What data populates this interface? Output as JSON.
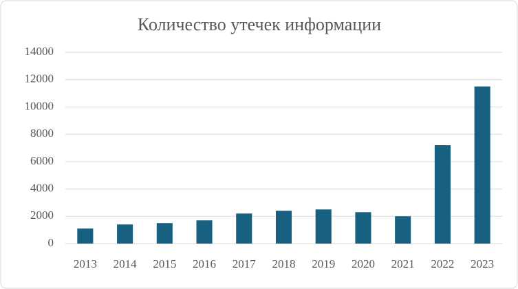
{
  "chart_data": {
    "type": "bar",
    "title": "Количество утечек информации",
    "categories": [
      "2013",
      "2014",
      "2015",
      "2016",
      "2017",
      "2018",
      "2019",
      "2020",
      "2021",
      "2022",
      "2023"
    ],
    "values": [
      1100,
      1400,
      1500,
      1700,
      2200,
      2400,
      2500,
      2300,
      2000,
      7200,
      11500
    ],
    "color": "#17607f",
    "ylim": [
      0,
      14000
    ],
    "yticks": [
      0,
      2000,
      4000,
      6000,
      8000,
      10000,
      12000,
      14000
    ],
    "grid": true
  }
}
